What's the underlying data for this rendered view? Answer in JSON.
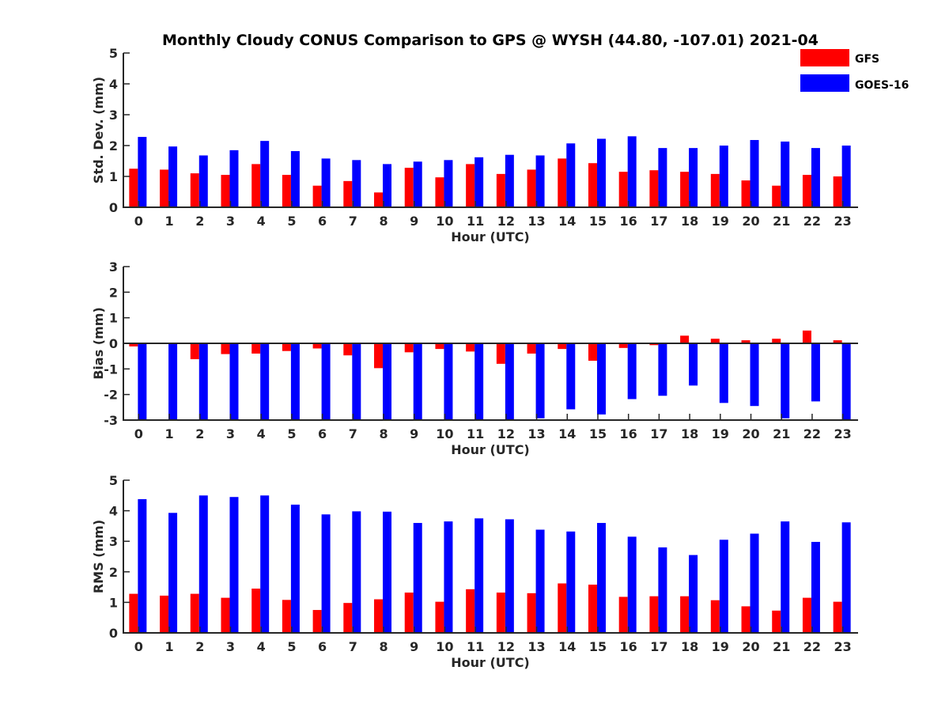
{
  "figure_title": "Monthly Cloudy CONUS Comparison to GPS @ WYSH (44.80, -107.01) 2021-04",
  "legend": [
    {
      "label": "GFS",
      "color": "#ff0000"
    },
    {
      "label": "GOES-16",
      "color": "#0000ff"
    }
  ],
  "chart_data": [
    {
      "type": "bar",
      "ylabel": "Std. Dev. (mm)",
      "xlabel": "Hour (UTC)",
      "categories": [
        "0",
        "1",
        "2",
        "3",
        "4",
        "5",
        "6",
        "7",
        "8",
        "9",
        "10",
        "11",
        "12",
        "13",
        "14",
        "15",
        "16",
        "17",
        "18",
        "19",
        "20",
        "21",
        "22",
        "23"
      ],
      "ylim": [
        0,
        5
      ],
      "yticks": [
        0,
        1,
        2,
        3,
        4,
        5
      ],
      "series": [
        {
          "name": "GFS",
          "color": "#ff0000",
          "values": [
            1.25,
            1.22,
            1.1,
            1.05,
            1.4,
            1.05,
            0.7,
            0.85,
            0.48,
            1.28,
            0.97,
            1.4,
            1.08,
            1.22,
            1.58,
            1.43,
            1.15,
            1.2,
            1.15,
            1.08,
            0.87,
            0.7,
            1.05,
            1.0
          ]
        },
        {
          "name": "GOES-16",
          "color": "#0000ff",
          "values": [
            2.28,
            1.97,
            1.68,
            1.85,
            2.15,
            1.82,
            1.58,
            1.53,
            1.4,
            1.48,
            1.53,
            1.62,
            1.7,
            1.68,
            2.07,
            2.22,
            2.3,
            1.92,
            1.92,
            2.0,
            2.18,
            2.13,
            1.92,
            2.0
          ]
        }
      ]
    },
    {
      "type": "bar",
      "ylabel": "Bias (mm)",
      "xlabel": "Hour (UTC)",
      "categories": [
        "0",
        "1",
        "2",
        "3",
        "4",
        "5",
        "6",
        "7",
        "8",
        "9",
        "10",
        "11",
        "12",
        "13",
        "14",
        "15",
        "16",
        "17",
        "18",
        "19",
        "20",
        "21",
        "22",
        "23"
      ],
      "ylim": [
        -3,
        3
      ],
      "yticks": [
        -3,
        -2,
        -1,
        0,
        1,
        2,
        3
      ],
      "series": [
        {
          "name": "GFS",
          "color": "#ff0000",
          "values": [
            -0.12,
            0.0,
            -0.62,
            -0.42,
            -0.4,
            -0.3,
            -0.2,
            -0.47,
            -0.97,
            -0.35,
            -0.22,
            -0.32,
            -0.8,
            -0.4,
            -0.22,
            -0.68,
            -0.18,
            -0.07,
            0.3,
            0.18,
            0.12,
            0.18,
            0.5,
            0.12
          ]
        },
        {
          "name": "GOES-16",
          "color": "#0000ff",
          "values": [
            -3.0,
            -3.0,
            -3.0,
            -3.0,
            -3.0,
            -3.0,
            -3.0,
            -3.0,
            -3.0,
            -3.0,
            -3.0,
            -3.0,
            -3.0,
            -2.93,
            -2.58,
            -2.78,
            -2.18,
            -2.05,
            -1.65,
            -2.33,
            -2.45,
            -2.93,
            -2.27,
            -3.0
          ]
        }
      ]
    },
    {
      "type": "bar",
      "ylabel": "RMS (mm)",
      "xlabel": "Hour (UTC)",
      "categories": [
        "0",
        "1",
        "2",
        "3",
        "4",
        "5",
        "6",
        "7",
        "8",
        "9",
        "10",
        "11",
        "12",
        "13",
        "14",
        "15",
        "16",
        "17",
        "18",
        "19",
        "20",
        "21",
        "22",
        "23"
      ],
      "ylim": [
        0,
        5
      ],
      "yticks": [
        0,
        1,
        2,
        3,
        4,
        5
      ],
      "series": [
        {
          "name": "GFS",
          "color": "#ff0000",
          "values": [
            1.28,
            1.22,
            1.28,
            1.15,
            1.45,
            1.08,
            0.75,
            0.98,
            1.1,
            1.32,
            1.02,
            1.43,
            1.32,
            1.3,
            1.62,
            1.58,
            1.18,
            1.2,
            1.2,
            1.07,
            0.87,
            0.73,
            1.15,
            1.02
          ]
        },
        {
          "name": "GOES-16",
          "color": "#0000ff",
          "values": [
            4.38,
            3.93,
            4.5,
            4.45,
            4.5,
            4.2,
            3.88,
            3.98,
            3.97,
            3.6,
            3.65,
            3.75,
            3.72,
            3.38,
            3.32,
            3.6,
            3.15,
            2.8,
            2.55,
            3.05,
            3.25,
            3.65,
            2.98,
            3.62
          ]
        }
      ]
    }
  ]
}
